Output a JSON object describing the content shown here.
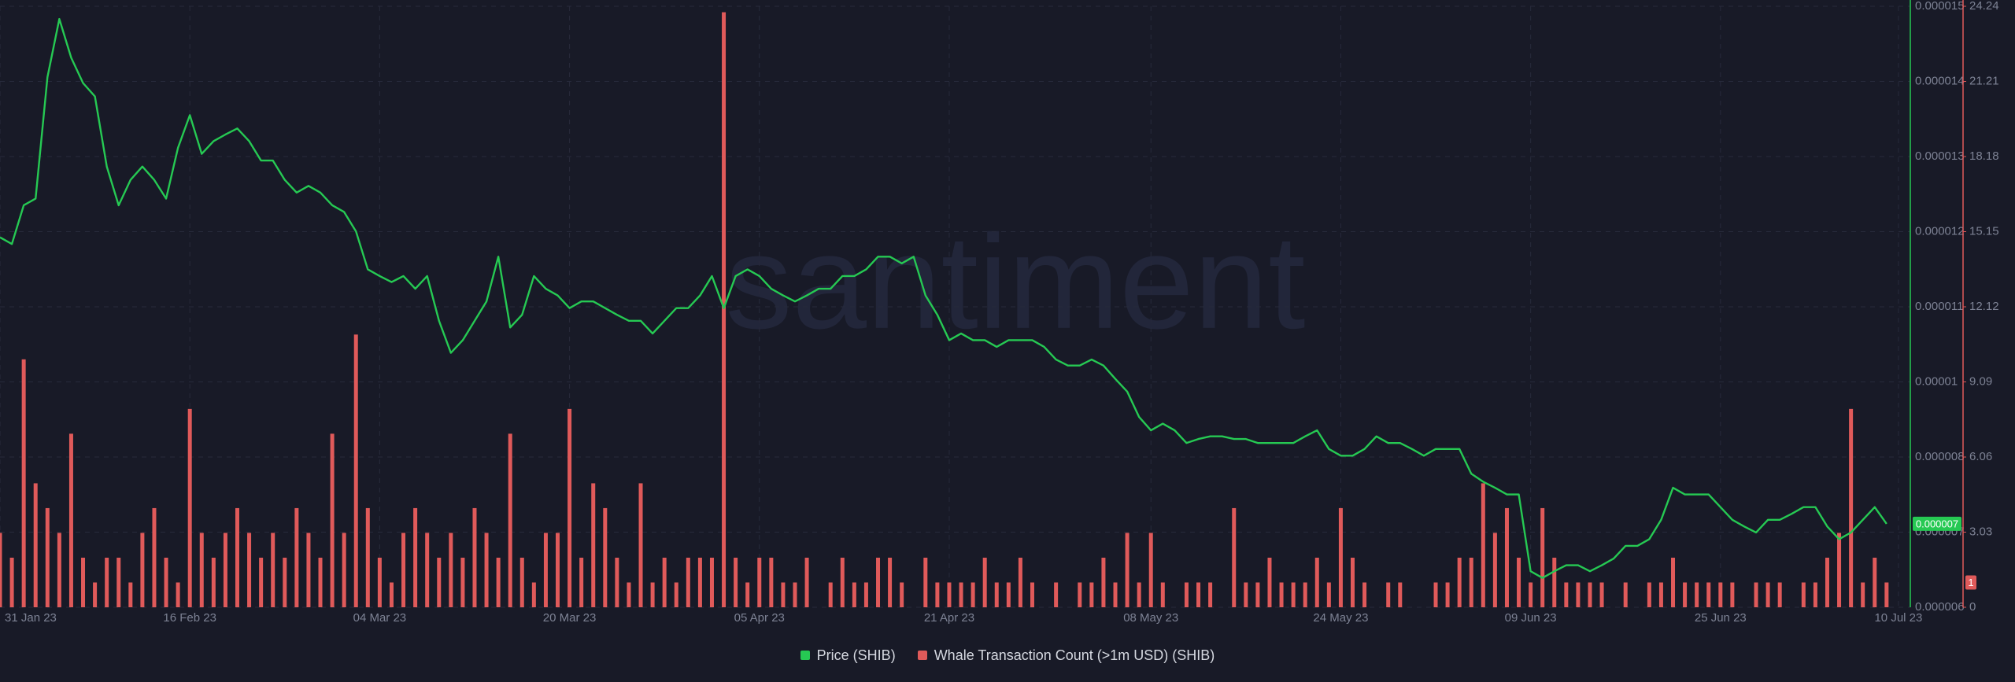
{
  "chart_data": {
    "type": "combo",
    "watermark": "santiment",
    "x": [
      "2023-01-31",
      "2023-02-01",
      "2023-02-02",
      "2023-02-03",
      "2023-02-04",
      "2023-02-05",
      "2023-02-06",
      "2023-02-07",
      "2023-02-08",
      "2023-02-09",
      "2023-02-10",
      "2023-02-11",
      "2023-02-12",
      "2023-02-13",
      "2023-02-14",
      "2023-02-15",
      "2023-02-16",
      "2023-02-17",
      "2023-02-18",
      "2023-02-19",
      "2023-02-20",
      "2023-02-21",
      "2023-02-22",
      "2023-02-23",
      "2023-02-24",
      "2023-02-25",
      "2023-02-26",
      "2023-02-27",
      "2023-02-28",
      "2023-03-01",
      "2023-03-02",
      "2023-03-03",
      "2023-03-04",
      "2023-03-05",
      "2023-03-06",
      "2023-03-07",
      "2023-03-08",
      "2023-03-09",
      "2023-03-10",
      "2023-03-11",
      "2023-03-12",
      "2023-03-13",
      "2023-03-14",
      "2023-03-15",
      "2023-03-16",
      "2023-03-17",
      "2023-03-18",
      "2023-03-19",
      "2023-03-20",
      "2023-03-21",
      "2023-03-22",
      "2023-03-23",
      "2023-03-24",
      "2023-03-25",
      "2023-03-26",
      "2023-03-27",
      "2023-03-28",
      "2023-03-29",
      "2023-03-30",
      "2023-03-31",
      "2023-04-01",
      "2023-04-02",
      "2023-04-03",
      "2023-04-04",
      "2023-04-05",
      "2023-04-06",
      "2023-04-07",
      "2023-04-08",
      "2023-04-09",
      "2023-04-10",
      "2023-04-11",
      "2023-04-12",
      "2023-04-13",
      "2023-04-14",
      "2023-04-15",
      "2023-04-16",
      "2023-04-17",
      "2023-04-18",
      "2023-04-19",
      "2023-04-20",
      "2023-04-21",
      "2023-04-22",
      "2023-04-23",
      "2023-04-24",
      "2023-04-25",
      "2023-04-26",
      "2023-04-27",
      "2023-04-28",
      "2023-04-29",
      "2023-04-30",
      "2023-05-01",
      "2023-05-02",
      "2023-05-03",
      "2023-05-04",
      "2023-05-05",
      "2023-05-06",
      "2023-05-07",
      "2023-05-08",
      "2023-05-09",
      "2023-05-10",
      "2023-05-11",
      "2023-05-12",
      "2023-05-13",
      "2023-05-14",
      "2023-05-15",
      "2023-05-16",
      "2023-05-17",
      "2023-05-18",
      "2023-05-19",
      "2023-05-20",
      "2023-05-21",
      "2023-05-22",
      "2023-05-23",
      "2023-05-24",
      "2023-05-25",
      "2023-05-26",
      "2023-05-27",
      "2023-05-28",
      "2023-05-29",
      "2023-05-30",
      "2023-05-31",
      "2023-06-01",
      "2023-06-02",
      "2023-06-03",
      "2023-06-04",
      "2023-06-05",
      "2023-06-06",
      "2023-06-07",
      "2023-06-08",
      "2023-06-09",
      "2023-06-10",
      "2023-06-11",
      "2023-06-12",
      "2023-06-13",
      "2023-06-14",
      "2023-06-15",
      "2023-06-16",
      "2023-06-17",
      "2023-06-18",
      "2023-06-19",
      "2023-06-20",
      "2023-06-21",
      "2023-06-22",
      "2023-06-23",
      "2023-06-24",
      "2023-06-25",
      "2023-06-26",
      "2023-06-27",
      "2023-06-28",
      "2023-06-29",
      "2023-06-30",
      "2023-07-01",
      "2023-07-02",
      "2023-07-03",
      "2023-07-04",
      "2023-07-05",
      "2023-07-06",
      "2023-07-07",
      "2023-07-08",
      "2023-07-09"
    ],
    "xlim": [
      "2023-01-31",
      "2023-07-11"
    ],
    "xticks": [
      {
        "value": "2023-01-31",
        "label": "31 Jan 23"
      },
      {
        "value": "2023-02-16",
        "label": "16 Feb 23"
      },
      {
        "value": "2023-03-04",
        "label": "04 Mar 23"
      },
      {
        "value": "2023-03-20",
        "label": "20 Mar 23"
      },
      {
        "value": "2023-04-05",
        "label": "05 Apr 23"
      },
      {
        "value": "2023-04-21",
        "label": "21 Apr 23"
      },
      {
        "value": "2023-05-08",
        "label": "08 May 23"
      },
      {
        "value": "2023-05-24",
        "label": "24 May 23"
      },
      {
        "value": "2023-06-09",
        "label": "09 Jun 23"
      },
      {
        "value": "2023-06-25",
        "label": "25 Jun 23"
      },
      {
        "value": "2023-07-10",
        "label": "10 Jul 23"
      }
    ],
    "ylim": [
      6e-06,
      1.5e-05
    ],
    "yticks": [
      {
        "value": 6e-06,
        "label": "0.000006"
      },
      {
        "value": 7.125e-06,
        "label": "0.000007"
      },
      {
        "value": 8.25e-06,
        "label": "0.000008"
      },
      {
        "value": 9.375e-06,
        "label": "0.00001"
      },
      {
        "value": 1.05e-05,
        "label": "0.000011"
      },
      {
        "value": 1.1625e-05,
        "label": "0.000012"
      },
      {
        "value": 1.275e-05,
        "label": "0.000013"
      },
      {
        "value": 1.3875e-05,
        "label": "0.000014"
      },
      {
        "value": 1.5e-05,
        "label": "0.000015"
      }
    ],
    "y2lim": [
      0,
      24.24
    ],
    "y2ticks": [
      0,
      3.03,
      6.06,
      9.09,
      12.12,
      15.15,
      18.18,
      21.21,
      24.24
    ],
    "grid": true,
    "series": [
      {
        "name": "Price (SHIB)",
        "type": "line",
        "color": "#26c953",
        "badge": "0.000007",
        "values": [
          1.154e-05,
          1.144e-05,
          1.202e-05,
          1.212e-05,
          1.394e-05,
          1.481e-05,
          1.423e-05,
          1.385e-05,
          1.365e-05,
          1.26e-05,
          1.202e-05,
          1.24e-05,
          1.26e-05,
          1.24e-05,
          1.212e-05,
          1.288e-05,
          1.337e-05,
          1.279e-05,
          1.298e-05,
          1.308e-05,
          1.317e-05,
          1.298e-05,
          1.269e-05,
          1.269e-05,
          1.24e-05,
          1.221e-05,
          1.231e-05,
          1.221e-05,
          1.202e-05,
          1.192e-05,
          1.163e-05,
          1.106e-05,
          1.096e-05,
          1.087e-05,
          1.096e-05,
          1.077e-05,
          1.096e-05,
          1.029e-05,
          9.81e-06,
          1e-05,
          1.029e-05,
          1.058e-05,
          1.125e-05,
          1.019e-05,
          1.038e-05,
          1.096e-05,
          1.077e-05,
          1.067e-05,
          1.048e-05,
          1.058e-05,
          1.058e-05,
          1.048e-05,
          1.038e-05,
          1.029e-05,
          1.029e-05,
          1.01e-05,
          1.029e-05,
          1.048e-05,
          1.048e-05,
          1.067e-05,
          1.096e-05,
          1.048e-05,
          1.096e-05,
          1.106e-05,
          1.096e-05,
          1.077e-05,
          1.067e-05,
          1.058e-05,
          1.067e-05,
          1.077e-05,
          1.077e-05,
          1.096e-05,
          1.096e-05,
          1.106e-05,
          1.125e-05,
          1.125e-05,
          1.115e-05,
          1.125e-05,
          1.067e-05,
          1.038e-05,
          1e-05,
          1.01e-05,
          1e-05,
          1e-05,
          9.9e-06,
          1e-05,
          1e-05,
          1e-05,
          9.9e-06,
          9.71e-06,
          9.62e-06,
          9.62e-06,
          9.71e-06,
          9.62e-06,
          9.42e-06,
          9.23e-06,
          8.85e-06,
          8.65e-06,
          8.75e-06,
          8.65e-06,
          8.46e-06,
          8.52e-06,
          8.56e-06,
          8.56e-06,
          8.52e-06,
          8.52e-06,
          8.46e-06,
          8.46e-06,
          8.46e-06,
          8.46e-06,
          8.56e-06,
          8.65e-06,
          8.37e-06,
          8.27e-06,
          8.27e-06,
          8.37e-06,
          8.56e-06,
          8.46e-06,
          8.46e-06,
          8.37e-06,
          8.27e-06,
          8.37e-06,
          8.37e-06,
          8.37e-06,
          8e-06,
          7.88e-06,
          7.79e-06,
          7.69e-06,
          7.69e-06,
          6.54e-06,
          6.44e-06,
          6.54e-06,
          6.63e-06,
          6.63e-06,
          6.54e-06,
          6.63e-06,
          6.73e-06,
          6.92e-06,
          6.92e-06,
          7.02e-06,
          7.31e-06,
          7.79e-06,
          7.69e-06,
          7.69e-06,
          7.69e-06,
          7.5e-06,
          7.31e-06,
          7.21e-06,
          7.12e-06,
          7.31e-06,
          7.31e-06,
          7.4e-06,
          7.5e-06,
          7.5e-06,
          7.21e-06,
          7.02e-06,
          7.12e-06,
          7.31e-06,
          7.5e-06,
          7.25e-06
        ]
      },
      {
        "name": "Whale Transaction Count (>1m USD) (SHIB)",
        "type": "bar",
        "axis": "y2",
        "color": "#e05a5a",
        "badge": "1",
        "values": [
          3,
          2,
          10,
          5,
          4,
          3,
          7,
          2,
          1,
          2,
          2,
          1,
          3,
          4,
          2,
          1,
          8,
          3,
          2,
          3,
          4,
          3,
          2,
          3,
          2,
          4,
          3,
          2,
          7,
          3,
          11,
          4,
          2,
          1,
          3,
          4,
          3,
          2,
          3,
          2,
          4,
          3,
          2,
          7,
          2,
          1,
          3,
          3,
          8,
          2,
          5,
          4,
          2,
          1,
          5,
          1,
          2,
          1,
          2,
          2,
          2,
          24,
          2,
          1,
          2,
          2,
          1,
          1,
          2,
          0,
          1,
          2,
          1,
          1,
          2,
          2,
          1,
          0,
          2,
          1,
          1,
          1,
          1,
          2,
          1,
          1,
          2,
          1,
          0,
          1,
          0,
          1,
          1,
          2,
          1,
          3,
          1,
          3,
          1,
          0,
          1,
          1,
          1,
          0,
          4,
          1,
          1,
          2,
          1,
          1,
          1,
          2,
          1,
          4,
          2,
          1,
          0,
          1,
          1,
          0,
          0,
          1,
          1,
          2,
          2,
          5,
          3,
          4,
          2,
          1,
          4,
          2,
          1,
          1,
          1,
          1,
          0,
          1,
          0,
          1,
          1,
          2,
          1,
          1,
          1,
          1,
          1,
          0,
          1,
          1,
          1,
          0,
          1,
          1,
          2,
          3,
          8,
          1,
          2,
          1
        ]
      }
    ]
  }
}
